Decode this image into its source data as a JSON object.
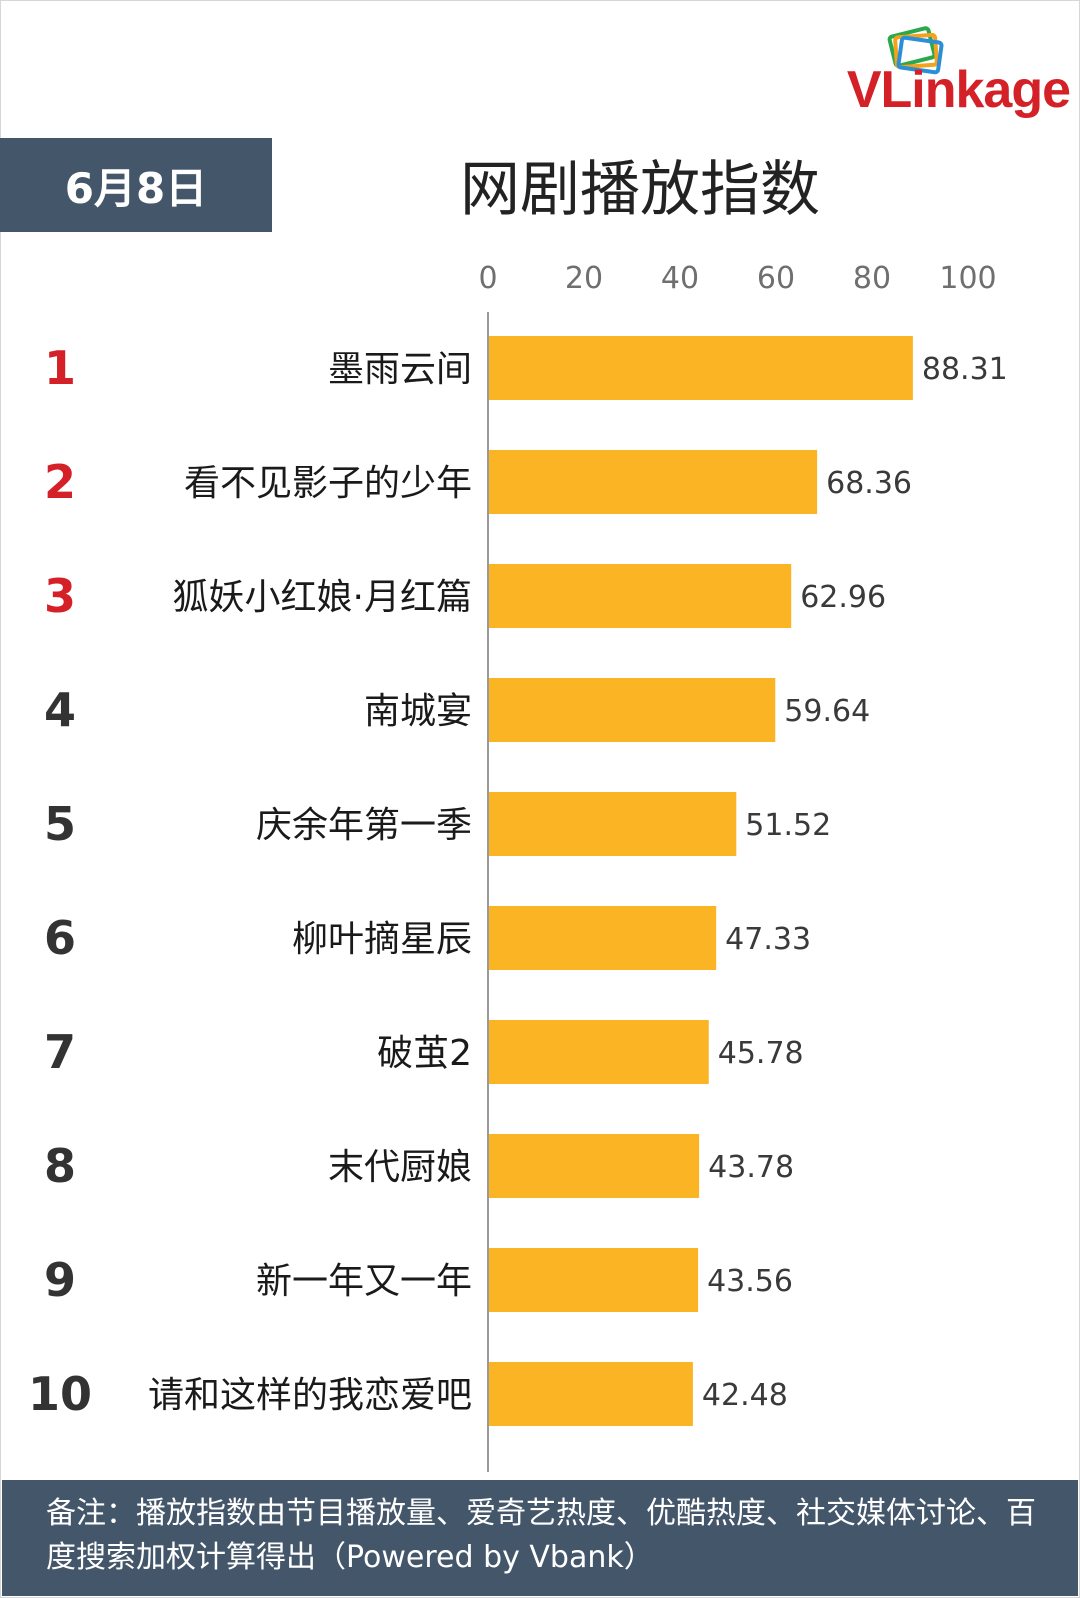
{
  "logo": {
    "letter_v": "V",
    "rest": "Linkage",
    "brand_color": "#d42027"
  },
  "date_label": "6月8日",
  "title": "网剧播放指数",
  "footer_note": "备注：播放指数由节目播放量、爱奇艺热度、优酷热度、社交媒体讨论、百度搜索加权计算得出（Powered by Vbank）",
  "colors": {
    "bar": "#fbb424",
    "header_bg": "#44566a",
    "rank_top3": "#d42027",
    "rank_other": "#333333"
  },
  "chart_data": {
    "type": "bar",
    "orientation": "horizontal",
    "title": "网剧播放指数",
    "xlim": [
      0,
      100
    ],
    "x_ticks": [
      "0",
      "20",
      "40",
      "60",
      "80",
      "100"
    ],
    "x_axis_position": "top",
    "grid": false,
    "legend": "none",
    "ranks": [
      "1",
      "2",
      "3",
      "4",
      "5",
      "6",
      "7",
      "8",
      "9",
      "10"
    ],
    "categories": [
      "墨雨云间",
      "看不见影子的少年",
      "狐妖小红娘·月红篇",
      "南城宴",
      "庆余年第一季",
      "柳叶摘星辰",
      "破茧2",
      "末代厨娘",
      "新一年又一年",
      "请和这样的我恋爱吧"
    ],
    "values": [
      88.31,
      68.36,
      62.96,
      59.64,
      51.52,
      47.33,
      45.78,
      43.78,
      43.56,
      42.48
    ],
    "value_labels": [
      "88.31",
      "68.36",
      "62.96",
      "59.64",
      "51.52",
      "47.33",
      "45.78",
      "43.78",
      "43.56",
      "42.48"
    ]
  }
}
